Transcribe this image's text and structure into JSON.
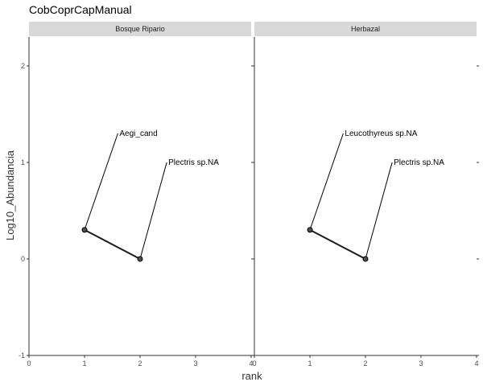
{
  "chart_data": {
    "type": "line",
    "title": "CobCoprCapManual",
    "xlabel": "rank",
    "ylabel": "Log10_Abundancia",
    "xlim": [
      0,
      4
    ],
    "ylim": [
      -1,
      2.3
    ],
    "x_ticks": [
      "0",
      "1",
      "2",
      "3",
      "4"
    ],
    "y_ticks": [
      "-1",
      "0",
      "1",
      "2"
    ],
    "grid": false,
    "facets": [
      {
        "strip": "Bosque Ripario",
        "points": [
          {
            "x": 1,
            "y": 0.301,
            "label": "Aegi_cand"
          },
          {
            "x": 2,
            "y": 0.0,
            "label": "Plectris sp.NA"
          }
        ]
      },
      {
        "strip": "Herbazal",
        "points": [
          {
            "x": 1,
            "y": 0.301,
            "label": "Leucothyreus sp.NA"
          },
          {
            "x": 2,
            "y": 0.0,
            "label": "Plectris sp.NA"
          }
        ]
      }
    ]
  }
}
